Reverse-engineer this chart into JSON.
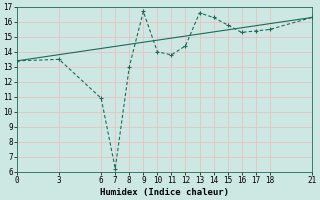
{
  "title": "",
  "xlabel": "Humidex (Indice chaleur)",
  "ylabel": "",
  "background_color": "#cde8e2",
  "grid_color": "#e8c0c0",
  "line_color": "#1a6b5a",
  "xlim": [
    0,
    21
  ],
  "ylim": [
    6,
    17
  ],
  "xticks": [
    0,
    3,
    6,
    7,
    8,
    9,
    10,
    11,
    12,
    13,
    14,
    15,
    16,
    17,
    18,
    21
  ],
  "yticks": [
    6,
    7,
    8,
    9,
    10,
    11,
    12,
    13,
    14,
    15,
    16,
    17
  ],
  "line1_x": [
    0,
    3,
    6,
    7,
    8,
    9,
    10,
    11,
    12,
    13,
    14,
    15,
    16,
    17,
    18,
    21
  ],
  "line1_y": [
    13.4,
    13.5,
    10.9,
    6.2,
    13.0,
    16.7,
    14.0,
    13.8,
    14.4,
    16.6,
    16.3,
    15.8,
    15.3,
    15.4,
    15.5,
    16.3
  ],
  "line2_x": [
    0,
    21
  ],
  "line2_y": [
    13.4,
    16.3
  ],
  "font_size": 6.5,
  "tick_fontsize": 5.5
}
